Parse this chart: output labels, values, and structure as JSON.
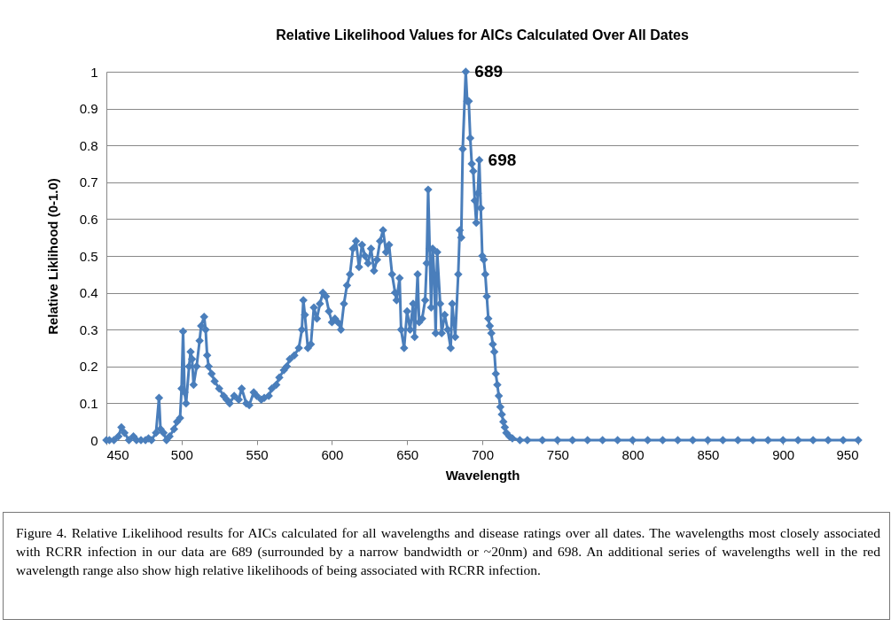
{
  "chart_data": {
    "type": "line",
    "title": "Relative Likelihood Values for AICs Calculated Over All Dates",
    "xlabel": "Wavelength",
    "ylabel": "Relative Liklihood (0-1.0)",
    "x": [
      450,
      452,
      455,
      458,
      460,
      462,
      465,
      468,
      470,
      473,
      476,
      478,
      480,
      483,
      485,
      486,
      488,
      490,
      492,
      495,
      497,
      499,
      500,
      501,
      502,
      503,
      505,
      506,
      507,
      508,
      510,
      512,
      513,
      515,
      516,
      517,
      518,
      520,
      522,
      525,
      528,
      530,
      532,
      535,
      538,
      540,
      543,
      545,
      548,
      550,
      553,
      555,
      558,
      560,
      563,
      565,
      568,
      570,
      572,
      575,
      578,
      580,
      581,
      582,
      584,
      586,
      588,
      590,
      592,
      594,
      596,
      598,
      600,
      602,
      604,
      606,
      608,
      610,
      612,
      614,
      616,
      618,
      620,
      622,
      624,
      626,
      628,
      630,
      632,
      634,
      636,
      638,
      640,
      642,
      643,
      645,
      646,
      648,
      650,
      652,
      654,
      655,
      657,
      658,
      660,
      662,
      663,
      664,
      665,
      666,
      667,
      668,
      669,
      670,
      672,
      673,
      675,
      677,
      679,
      680,
      682,
      684,
      685,
      686,
      687,
      689,
      690,
      691,
      692,
      693,
      694,
      695,
      696,
      697,
      698,
      699,
      700,
      701,
      702,
      703,
      704,
      705,
      706,
      707,
      708,
      709,
      710,
      711,
      712,
      713,
      714,
      715,
      716,
      718,
      720,
      725,
      730,
      740,
      750,
      760,
      770,
      780,
      790,
      800,
      810,
      820,
      830,
      840,
      850,
      860,
      870,
      880,
      890,
      900,
      910,
      920,
      930,
      940,
      950
    ],
    "series": [
      {
        "color": "#4a7ebb",
        "values": [
          0,
          0,
          0,
          0.01,
          0.035,
          0.02,
          0,
          0.01,
          0,
          0,
          0,
          0.005,
          0,
          0.02,
          0.115,
          0.03,
          0.02,
          0,
          0.01,
          0.03,
          0.05,
          0.06,
          0.14,
          0.295,
          0.13,
          0.1,
          0.2,
          0.24,
          0.22,
          0.15,
          0.2,
          0.27,
          0.31,
          0.335,
          0.3,
          0.23,
          0.2,
          0.18,
          0.16,
          0.14,
          0.12,
          0.11,
          0.1,
          0.12,
          0.11,
          0.14,
          0.1,
          0.095,
          0.13,
          0.12,
          0.11,
          0.115,
          0.12,
          0.14,
          0.15,
          0.17,
          0.19,
          0.2,
          0.22,
          0.23,
          0.25,
          0.3,
          0.38,
          0.34,
          0.25,
          0.26,
          0.36,
          0.33,
          0.37,
          0.4,
          0.39,
          0.35,
          0.32,
          0.33,
          0.32,
          0.3,
          0.37,
          0.42,
          0.45,
          0.52,
          0.54,
          0.47,
          0.53,
          0.5,
          0.48,
          0.52,
          0.46,
          0.49,
          0.54,
          0.57,
          0.51,
          0.53,
          0.45,
          0.4,
          0.38,
          0.44,
          0.3,
          0.25,
          0.35,
          0.3,
          0.37,
          0.28,
          0.45,
          0.32,
          0.33,
          0.38,
          0.48,
          0.68,
          0.52,
          0.36,
          0.52,
          0.45,
          0.29,
          0.51,
          0.37,
          0.29,
          0.34,
          0.3,
          0.25,
          0.37,
          0.28,
          0.45,
          0.57,
          0.55,
          0.79,
          1.0,
          0.92,
          0.92,
          0.82,
          0.75,
          0.73,
          0.65,
          0.59,
          0.67,
          0.76,
          0.63,
          0.5,
          0.49,
          0.45,
          0.39,
          0.33,
          0.31,
          0.29,
          0.26,
          0.24,
          0.18,
          0.15,
          0.12,
          0.09,
          0.07,
          0.05,
          0.035,
          0.02,
          0.01,
          0.005,
          0,
          0,
          0,
          0,
          0,
          0,
          0,
          0,
          0,
          0,
          0,
          0,
          0,
          0,
          0,
          0,
          0,
          0,
          0,
          0,
          0,
          0,
          0,
          0
        ]
      }
    ],
    "xlim": [
      450,
      950
    ],
    "xticks": [
      450,
      500,
      550,
      600,
      650,
      700,
      750,
      800,
      850,
      900,
      950
    ],
    "ylim": [
      0,
      1
    ],
    "yticks": [
      0,
      0.1,
      0.2,
      0.3,
      0.4,
      0.5,
      0.6,
      0.7,
      0.8,
      0.9,
      1
    ],
    "grid": "y",
    "marker": "diamond",
    "line_style": "solid",
    "annotations": [
      {
        "text": "689",
        "x": 689,
        "y": 1.0
      },
      {
        "text": "698",
        "x": 698,
        "y": 0.76
      },
      "Figure 4. Relative Likelihood results for AICs calculated for all wavelengths and disease ratings over all dates.  The wavelengths most closely associated with RCRR infection in our data are 689 (surrounded by a narrow bandwidth or ~20nm) and 698.  An additional series of wavelengths well in the red wavelength range also show high relative likelihoods of being associated with RCRR infection."
    ]
  }
}
